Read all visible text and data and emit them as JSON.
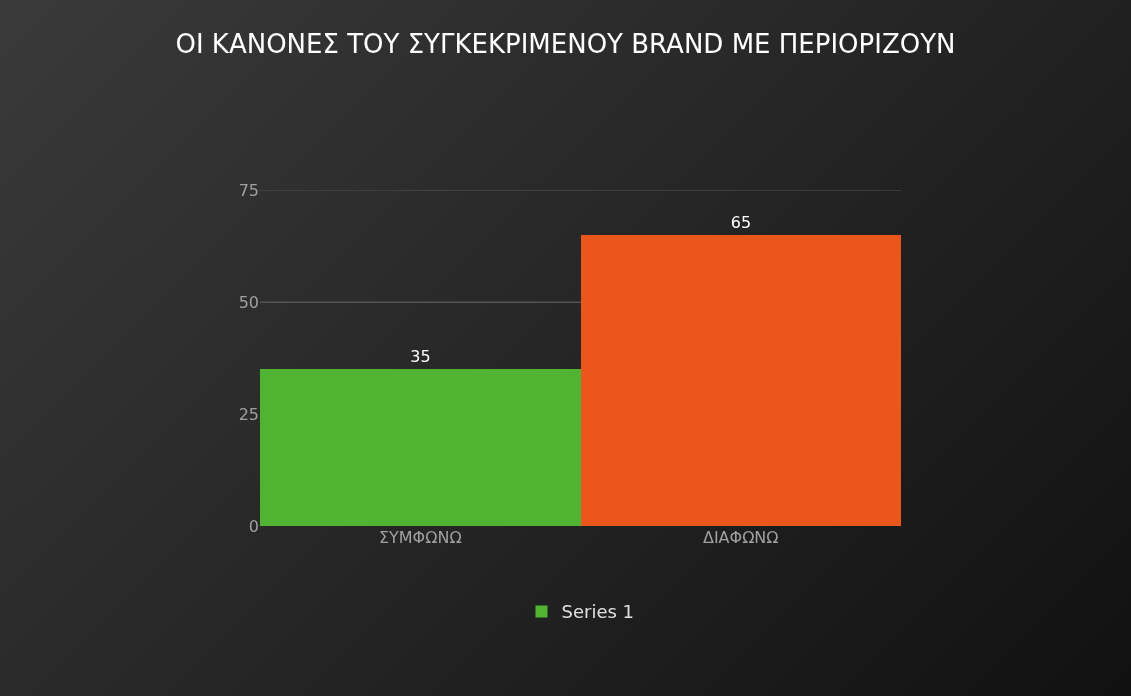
{
  "chart_data": {
    "type": "bar",
    "title": "ΟΙ ΚΑΝΟΝΕΣ ΤΟΥ ΣΥΓΚΕΚΡΙΜΕΝΟΥ BRAND ΜΕ ΠΕΡΙΟΡΙΖΟΥΝ",
    "categories": [
      "ΣΥΜΦΩΝΩ",
      "ΔΙΑΦΩΝΩ"
    ],
    "series": [
      {
        "name": "Series 1",
        "colors": [
          "#50b432",
          "#ea561b"
        ],
        "values": [
          35,
          65
        ]
      }
    ],
    "ylim": [
      0,
      75
    ],
    "yticks": [
      0,
      25,
      50,
      75
    ],
    "grid": "y",
    "data_labels": true,
    "legend": "bottom"
  }
}
